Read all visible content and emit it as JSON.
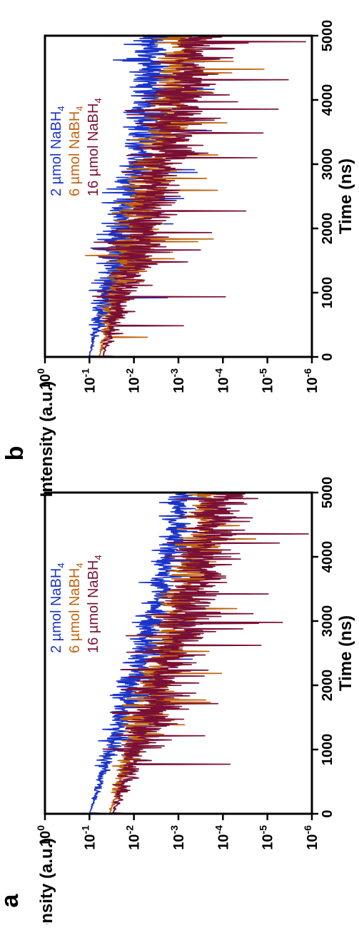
{
  "panels": [
    {
      "panel_label": "a",
      "chart_data": {
        "type": "line",
        "xlabel": "Time (ns)",
        "ylabel": "Intensity (a.u.)",
        "xlim": [
          0,
          5000
        ],
        "ylim": [
          1e-06,
          1
        ],
        "yscale": "log",
        "xticks": [
          0,
          1000,
          2000,
          3000,
          4000,
          5000
        ],
        "xtick_labels": [
          "0",
          "1000",
          "2000",
          "3000",
          "4000",
          "5000"
        ],
        "ytick_exponents": [
          0,
          -1,
          -2,
          -3,
          -4,
          -5,
          -6
        ],
        "ytick_base": "10",
        "legend_position": "top-left",
        "grid": false,
        "series": [
          {
            "name_main": "2 µmol NaBH",
            "name_sub": "4",
            "color": "#1a34c8",
            "peak": 0.1,
            "tail_level": 0.00045,
            "tau_ns": 900,
            "noise_decades": 0.35
          },
          {
            "name_main": "6 µmol NaBH",
            "name_sub": "4",
            "color": "#c0640f",
            "peak": 0.035,
            "tail_level": 8e-05,
            "tau_ns": 850,
            "noise_decades": 0.5
          },
          {
            "name_main": "16 µmol NaBH",
            "name_sub": "4",
            "color": "#7a0f35",
            "peak": 0.03,
            "tail_level": 2.5e-05,
            "tau_ns": 800,
            "noise_decades": 0.7
          }
        ]
      }
    },
    {
      "panel_label": "b",
      "chart_data": {
        "type": "line",
        "xlabel": "Time (ns)",
        "ylabel": "Intensity (a.u.)",
        "xlim": [
          0,
          5000
        ],
        "ylim": [
          1e-06,
          1
        ],
        "yscale": "log",
        "xticks": [
          0,
          1000,
          2000,
          3000,
          4000,
          5000
        ],
        "xtick_labels": [
          "0",
          "1000",
          "2000",
          "3000",
          "4000",
          "5000"
        ],
        "ytick_exponents": [
          0,
          -1,
          -2,
          -3,
          -4,
          -5,
          -6
        ],
        "ytick_base": "10",
        "legend_position": "top-left",
        "grid": false,
        "series": [
          {
            "name_main": "2 µmol NaBH",
            "name_sub": "4",
            "color": "#1a34c8",
            "peak": 0.1,
            "tail_level": 0.0025,
            "tau_ns": 1100,
            "noise_decades": 0.45
          },
          {
            "name_main": "6 µmol NaBH",
            "name_sub": "4",
            "color": "#c0640f",
            "peak": 0.06,
            "tail_level": 0.0003,
            "tau_ns": 1000,
            "noise_decades": 0.55
          },
          {
            "name_main": "16 µmol NaBH",
            "name_sub": "4",
            "color": "#7a0f35",
            "peak": 0.05,
            "tail_level": 0.00012,
            "tau_ns": 950,
            "noise_decades": 0.75
          }
        ]
      }
    }
  ]
}
